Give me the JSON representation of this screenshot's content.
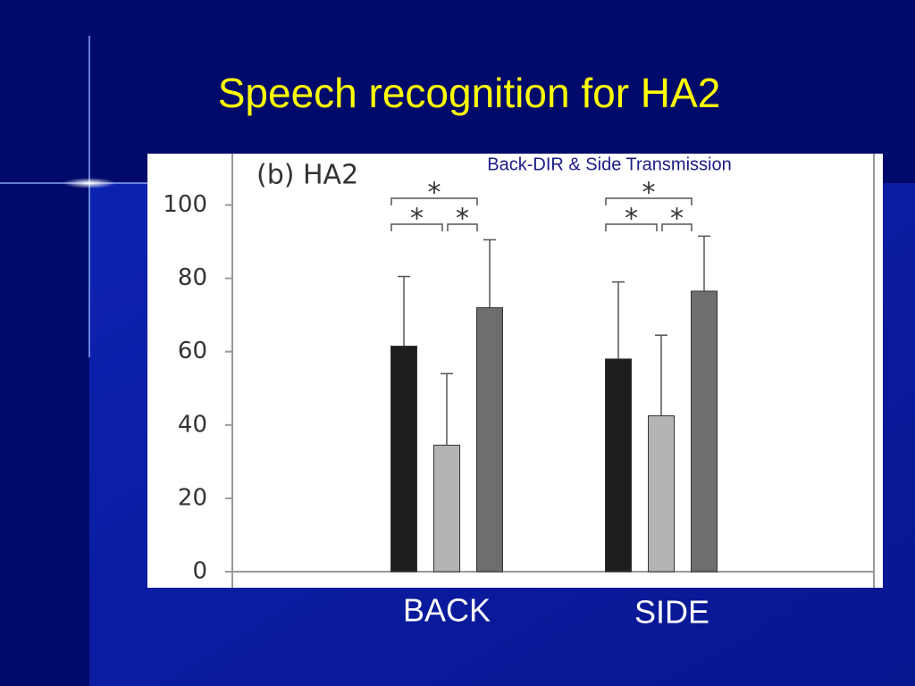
{
  "chart_data": {
    "type": "bar",
    "title": "Speech recognition for HA2",
    "panel_label": "(b) HA2",
    "subtitle": "Back-DIR & Side Transmission",
    "categories": [
      "BACK",
      "SIDE"
    ],
    "series": [
      {
        "color": "#1e1e1e",
        "values": [
          61.5,
          58
        ],
        "errors": [
          19,
          21
        ]
      },
      {
        "color": "#b4b4b4",
        "values": [
          34.5,
          42.5
        ],
        "errors": [
          19.5,
          22
        ]
      },
      {
        "color": "#6e6e6e",
        "values": [
          72,
          76.5
        ],
        "errors": [
          18.5,
          15
        ]
      }
    ],
    "significance_labels": [
      [
        "*",
        "*",
        "*"
      ],
      [
        "*",
        "*",
        "*"
      ]
    ],
    "ylim": [
      0,
      114
    ],
    "yticks": [
      0,
      20,
      40,
      60,
      80,
      100
    ]
  }
}
